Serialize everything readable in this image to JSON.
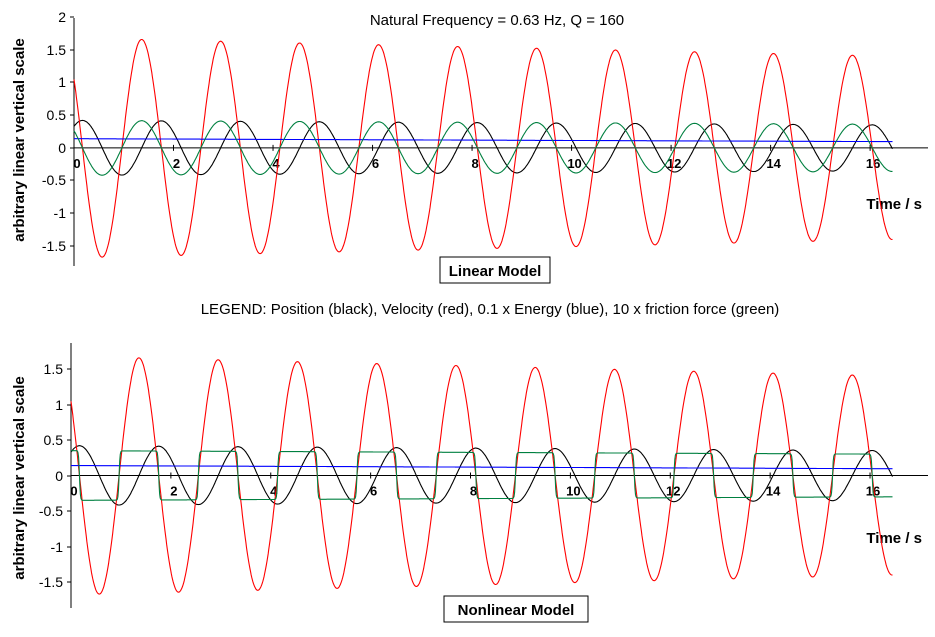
{
  "title": "Natural Frequency = 0.63 Hz, Q = 160",
  "legend": "LEGEND:  Position (black), Velocity (red), 0.1 x Energy (blue), 10 x friction force (green)",
  "colors": {
    "position": "#000000",
    "velocity": "#ff0000",
    "energy": "#0000ff",
    "friction": "#008040"
  },
  "chart_data": [
    {
      "type": "line",
      "model_label": "Linear Model",
      "xlabel": "Time / s",
      "ylabel": "arbitrary linear vertical scale",
      "xlim": [
        0,
        16.5
      ],
      "ylim": [
        -1.8,
        2
      ],
      "x_ticks": [
        "0",
        "2",
        "4",
        "6",
        "8",
        "10",
        "12",
        "14",
        "16"
      ],
      "y_ticks": [
        "2",
        "1.5",
        "1",
        "0.5",
        "0",
        "-0.5",
        "-1",
        "-1.5"
      ],
      "series": [
        {
          "name": "Position",
          "color": "#000000",
          "amplitude_start": 0.42,
          "amplitude_end": 0.35,
          "frequency_hz": 0.63,
          "phase_rad": 0.9
        },
        {
          "name": "Velocity",
          "color": "#ff0000",
          "amplitude_start": 1.68,
          "amplitude_end": 1.4,
          "frequency_hz": 0.63,
          "phase_rad": 2.47
        },
        {
          "name": "0.1 x Energy",
          "color": "#0000ff",
          "start": 0.14,
          "end": 0.095
        },
        {
          "name": "10 x friction force",
          "color": "#008040",
          "shape": "sine",
          "amplitude_start": 0.42,
          "amplitude_end": 0.36,
          "frequency_hz": 0.63,
          "phase_rad": 2.47
        }
      ]
    },
    {
      "type": "line",
      "model_label": "Nonlinear Model",
      "xlabel": "Time / s",
      "ylabel": "arbitrary linear vertical scale",
      "xlim": [
        0,
        16.5
      ],
      "ylim": [
        -1.8,
        1.8
      ],
      "x_ticks": [
        "0",
        "2",
        "4",
        "6",
        "8",
        "10",
        "12",
        "14",
        "16"
      ],
      "y_ticks": [
        "1.5",
        "1",
        "0.5",
        "0",
        "-0.5",
        "-1",
        "-1.5"
      ],
      "series": [
        {
          "name": "Position",
          "color": "#000000",
          "amplitude_start": 0.42,
          "amplitude_end": 0.35,
          "frequency_hz": 0.63,
          "phase_rad": 0.9
        },
        {
          "name": "Velocity",
          "color": "#ff0000",
          "amplitude_start": 1.68,
          "amplitude_end": 1.4,
          "frequency_hz": 0.63,
          "phase_rad": 2.47
        },
        {
          "name": "0.1 x Energy",
          "color": "#0000ff",
          "start": 0.14,
          "end": 0.095
        },
        {
          "name": "10 x friction force",
          "color": "#008040",
          "shape": "square",
          "amplitude_start": 0.35,
          "amplitude_end": 0.3,
          "frequency_hz": 0.63,
          "phase_rad": 2.47
        }
      ]
    }
  ]
}
